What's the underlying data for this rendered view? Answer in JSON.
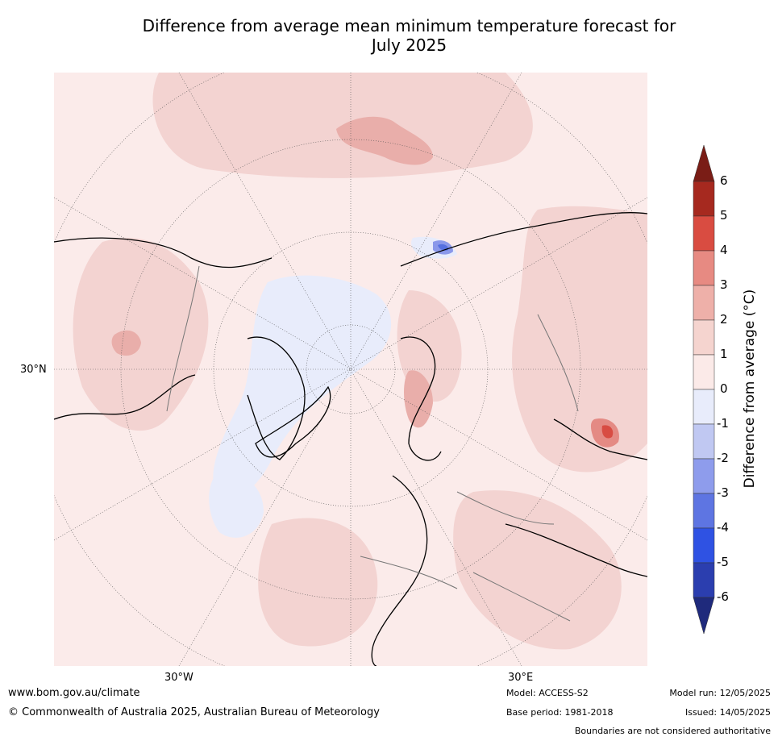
{
  "title": {
    "line1": "Difference from average mean minimum temperature forecast for",
    "line2": "July 2025"
  },
  "map": {
    "lat_labels": [
      "30°N"
    ],
    "lon_labels": [
      "30°W",
      "30°E"
    ],
    "colors": {
      "ocean_base": "#fbebea",
      "warm_1_2": "#f3d3d1",
      "warm_2_3": "#e9aeaa",
      "warm_3_4": "#e48a84",
      "warm_4_5": "#d84c43",
      "cool_0_1": "#e8ecfb",
      "cool_2_3": "#8a98ea",
      "cool_3_4": "#5670e0"
    }
  },
  "colorbar": {
    "label": "Difference from average (°C)",
    "ticks": [
      "6",
      "5",
      "4",
      "3",
      "2",
      "1",
      "0",
      "-1",
      "-2",
      "-3",
      "-4",
      "-5",
      "-6"
    ],
    "colors": [
      "#a6291f",
      "#d94c41",
      "#e78a82",
      "#eeb0a9",
      "#f5d4cf",
      "#fbeae8",
      "#e8ecfb",
      "#c0c8f2",
      "#8e9cec",
      "#5e75e2",
      "#2f52e3",
      "#2b3eaf"
    ],
    "extend_top": "#7a1d16",
    "extend_bottom": "#1f2a7c"
  },
  "footer": {
    "website": "www.bom.gov.au/climate",
    "copyright": "© Commonwealth of Australia 2025, Australian Bureau of Meteorology",
    "model": "Model: ACCESS-S2",
    "base_period": "Base period: 1981-2018",
    "model_run": "Model run: 12/05/2025",
    "issued": "Issued: 14/05/2025",
    "boundaries": "Boundaries are not considered authoritative"
  }
}
